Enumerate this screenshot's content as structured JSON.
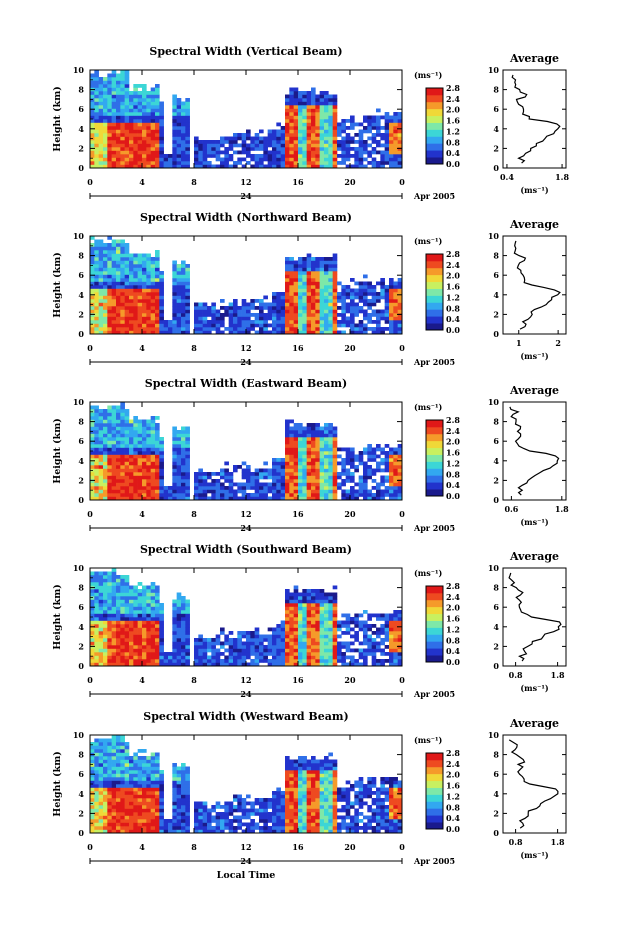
{
  "figure": {
    "xlabel": "Local Time",
    "date_label": "24",
    "date_suffix": "Apr 2005",
    "colorbar_unit": "(ms⁻¹)",
    "average_title": "Average",
    "average_xlabel": "(ms⁻¹)",
    "colormap": [
      "#1a1a8c",
      "#2233cc",
      "#2f6fe8",
      "#32a8f0",
      "#3cd6d6",
      "#7ee8a8",
      "#c8f060",
      "#f0d838",
      "#f59a2a",
      "#ee4a20",
      "#e01818"
    ],
    "colors": {
      "high": "#e82020",
      "low": "#2a3fd0",
      "axis": "#000000"
    }
  },
  "chart_data": [
    {
      "type": "heatmap",
      "title": "Spectral Width (Vertical Beam)",
      "ylabel": "Height (km)",
      "yticks": [
        "0",
        "2",
        "4",
        "6",
        "8",
        "10"
      ],
      "xticks": [
        "0",
        "4",
        "8",
        "12",
        "16",
        "20",
        "0"
      ],
      "ylim": [
        0,
        10
      ],
      "xlim": [
        0,
        24
      ],
      "colorbar_ticks": [
        "0.0",
        "0.4",
        "0.8",
        "1.2",
        "1.6",
        "2.0",
        "2.4",
        "2.8"
      ],
      "colorbar_range": [
        0,
        2.8
      ],
      "average": {
        "xticks": [
          "0.4",
          "1.8"
        ],
        "xlim": [
          0.3,
          1.9
        ],
        "heights": [
          0.5,
          1,
          1.5,
          2,
          2.5,
          3,
          3.5,
          4,
          4.5,
          5,
          5.5,
          6,
          6.5,
          7,
          7.5,
          8,
          8.5,
          9,
          9.5
        ],
        "values": [
          0.8,
          0.75,
          0.9,
          1.0,
          1.1,
          1.35,
          1.6,
          1.75,
          1.7,
          1.0,
          0.75,
          0.8,
          0.75,
          0.7,
          0.95,
          0.7,
          0.6,
          0.65,
          0.5
        ]
      }
    },
    {
      "type": "heatmap",
      "title": "Spectral Width (Northward Beam)",
      "ylabel": "Height (km)",
      "yticks": [
        "0",
        "2",
        "4",
        "6",
        "8",
        "10"
      ],
      "xticks": [
        "0",
        "4",
        "8",
        "12",
        "16",
        "20",
        "0"
      ],
      "ylim": [
        0,
        10
      ],
      "xlim": [
        0,
        24
      ],
      "colorbar_ticks": [
        "0.0",
        "0.4",
        "0.8",
        "1.2",
        "1.6",
        "2.0",
        "2.4",
        "2.8"
      ],
      "colorbar_range": [
        0,
        2.8
      ],
      "average": {
        "xticks": [
          "1",
          "2"
        ],
        "xlim": [
          0.6,
          2.2
        ],
        "heights": [
          0.5,
          1,
          1.5,
          2,
          2.5,
          3,
          3.5,
          4,
          4.5,
          5,
          5.5,
          6,
          6.5,
          7,
          7.5,
          8,
          8.5,
          9,
          9.5
        ],
        "values": [
          1.05,
          1.15,
          1.2,
          1.3,
          1.45,
          1.7,
          1.85,
          2.0,
          1.9,
          1.3,
          1.1,
          1.05,
          1.1,
          1.0,
          1.15,
          1.0,
          0.95,
          0.85,
          0.9
        ]
      }
    },
    {
      "type": "heatmap",
      "title": "Spectral Width (Eastward Beam)",
      "ylabel": "Height (km)",
      "yticks": [
        "0",
        "2",
        "4",
        "6",
        "8",
        "10"
      ],
      "xticks": [
        "0",
        "4",
        "8",
        "12",
        "16",
        "20",
        "0"
      ],
      "ylim": [
        0,
        10
      ],
      "xlim": [
        0,
        24
      ],
      "colorbar_ticks": [
        "0.0",
        "0.4",
        "0.8",
        "1.2",
        "1.6",
        "2.0",
        "2.4",
        "2.8"
      ],
      "colorbar_range": [
        0,
        2.8
      ],
      "average": {
        "xticks": [
          "0.6",
          "1.8"
        ],
        "xlim": [
          0.4,
          1.9
        ],
        "heights": [
          0.5,
          1,
          1.5,
          2,
          2.5,
          3,
          3.5,
          4,
          4.5,
          5,
          5.5,
          6,
          6.5,
          7,
          7.5,
          8,
          8.5,
          9,
          9.5
        ],
        "values": [
          0.85,
          0.8,
          0.9,
          1.0,
          1.15,
          1.35,
          1.55,
          1.75,
          1.7,
          1.0,
          0.8,
          0.75,
          0.8,
          0.7,
          0.85,
          0.7,
          0.65,
          0.75,
          0.6
        ]
      }
    },
    {
      "type": "heatmap",
      "title": "Spectral Width (Southward Beam)",
      "ylabel": "Height (km)",
      "yticks": [
        "0",
        "2",
        "4",
        "6",
        "8",
        "10"
      ],
      "xticks": [
        "0",
        "4",
        "8",
        "12",
        "16",
        "20",
        "0"
      ],
      "ylim": [
        0,
        10
      ],
      "xlim": [
        0,
        24
      ],
      "colorbar_ticks": [
        "0.0",
        "0.4",
        "0.8",
        "1.2",
        "1.6",
        "2.0",
        "2.4",
        "2.8"
      ],
      "colorbar_range": [
        0,
        2.8
      ],
      "average": {
        "xticks": [
          "0.8",
          "1.8"
        ],
        "xlim": [
          0.5,
          2.0
        ],
        "heights": [
          0.5,
          1,
          1.5,
          2,
          2.5,
          3,
          3.5,
          4,
          4.5,
          5,
          5.5,
          6,
          6.5,
          7,
          7.5,
          8,
          8.5,
          9,
          9.5
        ],
        "values": [
          1.0,
          0.95,
          1.0,
          1.1,
          1.25,
          1.45,
          1.65,
          1.85,
          1.8,
          1.15,
          0.95,
          0.9,
          0.95,
          0.85,
          1.0,
          0.8,
          0.75,
          0.7,
          0.65
        ]
      }
    },
    {
      "type": "heatmap",
      "title": "Spectral Width (Westward Beam)",
      "ylabel": "Height (km)",
      "yticks": [
        "0",
        "2",
        "4",
        "6",
        "8",
        "10"
      ],
      "xticks": [
        "0",
        "4",
        "8",
        "12",
        "16",
        "20",
        "0"
      ],
      "ylim": [
        0,
        10
      ],
      "xlim": [
        0,
        24
      ],
      "colorbar_ticks": [
        "0.0",
        "0.4",
        "0.8",
        "1.2",
        "1.6",
        "2.0",
        "2.4",
        "2.8"
      ],
      "colorbar_range": [
        0,
        2.8
      ],
      "average": {
        "xticks": [
          "0.8",
          "1.8"
        ],
        "xlim": [
          0.5,
          2.0
        ],
        "heights": [
          0.5,
          1,
          1.5,
          2,
          2.5,
          3,
          3.5,
          4,
          4.5,
          5,
          5.5,
          6,
          6.5,
          7,
          7.5,
          8,
          8.5,
          9,
          9.5
        ],
        "values": [
          0.95,
          0.95,
          1.0,
          1.1,
          1.25,
          1.45,
          1.6,
          1.85,
          1.8,
          1.1,
          0.95,
          0.9,
          0.95,
          0.85,
          1.0,
          0.8,
          0.75,
          0.8,
          0.7
        ]
      }
    }
  ]
}
